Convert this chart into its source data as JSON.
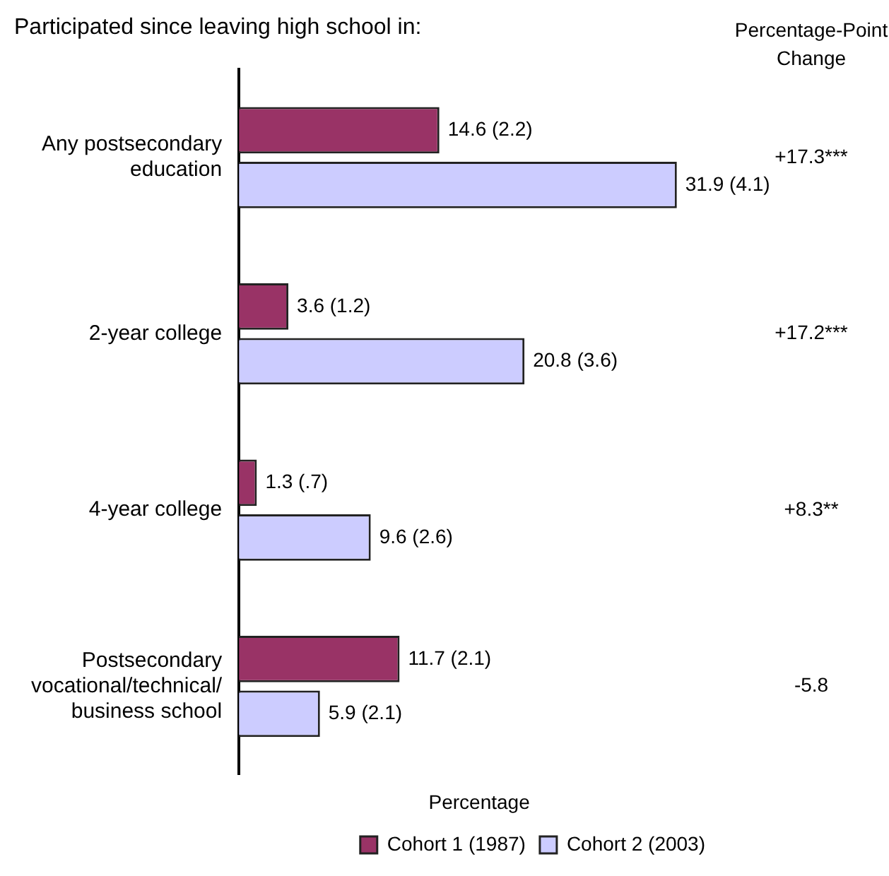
{
  "chart_data": {
    "type": "bar",
    "orientation": "horizontal",
    "title": "Participated since leaving high school in:",
    "xlabel": "Percentage",
    "categories": [
      "Any postsecondary education",
      "2-year college",
      "4-year college",
      "Postsecondary vocational/technical/ business school"
    ],
    "series": [
      {
        "name": "Cohort 1 (1987)",
        "color": "#993366",
        "values": [
          14.6,
          3.6,
          1.3,
          11.7
        ],
        "value_labels": [
          "14.6 (2.2)",
          "3.6 (1.2)",
          "1.3 (.7)",
          "11.7 (2.1)"
        ]
      },
      {
        "name": "Cohort 2 (2003)",
        "color": "#ccccff",
        "values": [
          31.9,
          20.8,
          9.6,
          5.9
        ],
        "value_labels": [
          "31.9 (4.1)",
          "20.8 (3.6)",
          "9.6 (2.6)",
          "5.9 (2.1)"
        ]
      }
    ],
    "annotations": [
      "Percentage-Point Change",
      "+17.3***",
      "+17.2***",
      "+8.3**",
      "-5.8"
    ],
    "legend": "bottom right",
    "tick_labels": "y",
    "grid": false
  }
}
